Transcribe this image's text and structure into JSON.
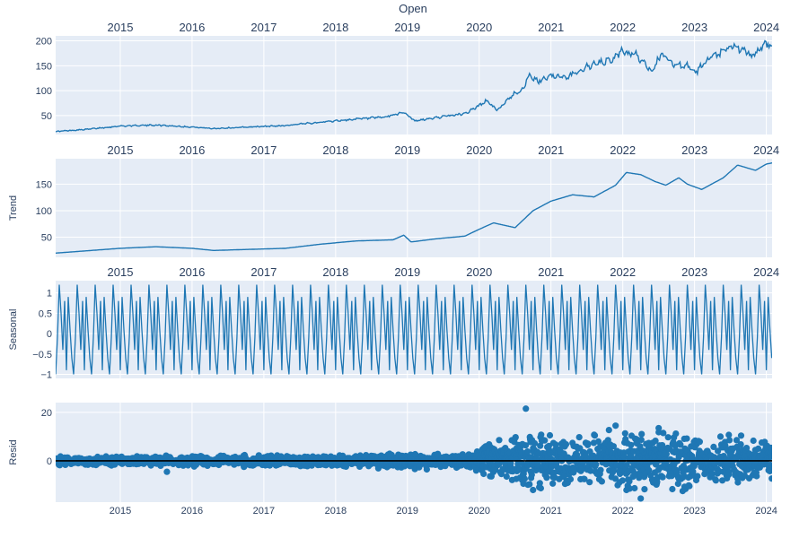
{
  "figure": {
    "title": "Open",
    "colors": {
      "plot_bg": "#E5ECF6",
      "grid": "#FFFFFF",
      "line": "#1F77B4",
      "zero_line": "#000000",
      "text": "#2A3F5F"
    }
  },
  "chart_data": [
    {
      "type": "line",
      "name": "observed",
      "title": "Open",
      "ylabel": "",
      "x_range": [
        2014.1,
        2024.08
      ],
      "ylim": [
        12,
        210
      ],
      "y_ticks": [
        50,
        100,
        150,
        200
      ],
      "x_ticks": [
        2015,
        2016,
        2017,
        2018,
        2019,
        2020,
        2021,
        2022,
        2023,
        2024
      ],
      "x_tick_position": "top",
      "grid": true,
      "series": [
        {
          "x": [
            2014.1,
            2014.5,
            2015.0,
            2015.5,
            2016.0,
            2016.3,
            2016.8,
            2017.3,
            2017.8,
            2018.3,
            2018.7,
            2018.95,
            2019.1,
            2019.5,
            2019.8,
            2020.0,
            2020.1,
            2020.25,
            2020.45,
            2020.62,
            2020.68,
            2020.82,
            2021.0,
            2021.2,
            2021.5,
            2021.85,
            2022.0,
            2022.2,
            2022.4,
            2022.55,
            2022.7,
            2022.9,
            2023.0,
            2023.2,
            2023.4,
            2023.55,
            2023.8,
            2024.0,
            2024.08
          ],
          "y": [
            18,
            22,
            29,
            31,
            27,
            24,
            27,
            30,
            37,
            43,
            47,
            57,
            39,
            48,
            54,
            70,
            80,
            60,
            90,
            105,
            130,
            118,
            132,
            125,
            148,
            162,
            180,
            170,
            140,
            175,
            152,
            150,
            135,
            163,
            178,
            190,
            170,
            195,
            188
          ]
        }
      ]
    },
    {
      "type": "line",
      "name": "trend",
      "title": "",
      "ylabel": "Trend",
      "x_range": [
        2014.1,
        2024.08
      ],
      "ylim": [
        12,
        198
      ],
      "y_ticks": [
        50,
        100,
        150
      ],
      "x_ticks": [
        2015,
        2016,
        2017,
        2018,
        2019,
        2020,
        2021,
        2022,
        2023,
        2024
      ],
      "x_tick_position": "top",
      "grid": true,
      "series": [
        {
          "x": [
            2014.1,
            2014.5,
            2015.0,
            2015.5,
            2016.0,
            2016.3,
            2016.8,
            2017.3,
            2017.8,
            2018.3,
            2018.8,
            2018.95,
            2019.05,
            2019.4,
            2019.8,
            2020.0,
            2020.2,
            2020.5,
            2020.75,
            2021.0,
            2021.3,
            2021.6,
            2021.9,
            2022.05,
            2022.25,
            2022.45,
            2022.6,
            2022.78,
            2022.9,
            2023.1,
            2023.4,
            2023.6,
            2023.85,
            2024.0,
            2024.08
          ],
          "y": [
            20,
            24,
            29,
            32,
            29,
            25,
            27,
            29,
            37,
            43,
            45,
            54,
            41,
            47,
            52,
            65,
            77,
            68,
            100,
            118,
            130,
            126,
            148,
            172,
            168,
            155,
            148,
            162,
            150,
            140,
            162,
            186,
            176,
            188,
            190
          ]
        }
      ]
    },
    {
      "type": "line",
      "name": "seasonal",
      "title": "",
      "ylabel": "Seasonal",
      "x_range": [
        2014.1,
        2024.08
      ],
      "ylim": [
        -1.1,
        1.3
      ],
      "y_ticks": [
        -1,
        -0.5,
        0,
        0.5,
        1
      ],
      "y_tick_labels": [
        "−1",
        "−0.5",
        "0",
        "0.5",
        "1"
      ],
      "x_ticks": [
        2015,
        2016,
        2017,
        2018,
        2019,
        2020,
        2021,
        2022,
        2023,
        2024
      ],
      "x_tick_position": "top",
      "grid": true,
      "pattern": {
        "period_years": 0.25,
        "cycle_x": [
          0,
          0.1,
          0.2,
          0.3,
          0.4,
          0.5,
          0.6,
          0.7,
          0.8,
          0.9,
          1.0
        ],
        "cycle_y": [
          -1.0,
          -0.1,
          1.2,
          0.5,
          -0.4,
          0.8,
          -0.9,
          0.9,
          0.1,
          -0.6,
          -1.0
        ]
      }
    },
    {
      "type": "scatter",
      "name": "resid",
      "title": "",
      "ylabel": "Resid",
      "x_range": [
        2014.1,
        2024.08
      ],
      "ylim": [
        -17,
        24
      ],
      "y_ticks": [
        0,
        20
      ],
      "x_ticks": [
        2015,
        2016,
        2017,
        2018,
        2019,
        2020,
        2021,
        2022,
        2023,
        2024
      ],
      "x_tick_position": "bottom",
      "grid": true,
      "zero_line": true,
      "amplitude_profile": {
        "x": [
          2014.1,
          2016.0,
          2018.0,
          2019.8,
          2020.05,
          2020.3,
          2020.6,
          2020.9,
          2021.5,
          2022.0,
          2022.5,
          2023.0,
          2023.6,
          2024.08
        ],
        "amp": [
          1.5,
          2.0,
          2.5,
          3.0,
          6.0,
          8.0,
          12.0,
          9.0,
          8.0,
          12.0,
          11.0,
          10.0,
          9.0,
          7.0
        ]
      },
      "extremes": [
        {
          "x": 2020.65,
          "y": 21.5
        },
        {
          "x": 2020.75,
          "y": -12.0
        },
        {
          "x": 2021.9,
          "y": 14.5
        },
        {
          "x": 2022.25,
          "y": -15.5
        },
        {
          "x": 2022.5,
          "y": 13.5
        },
        {
          "x": 2015.65,
          "y": -4.5
        }
      ]
    }
  ]
}
